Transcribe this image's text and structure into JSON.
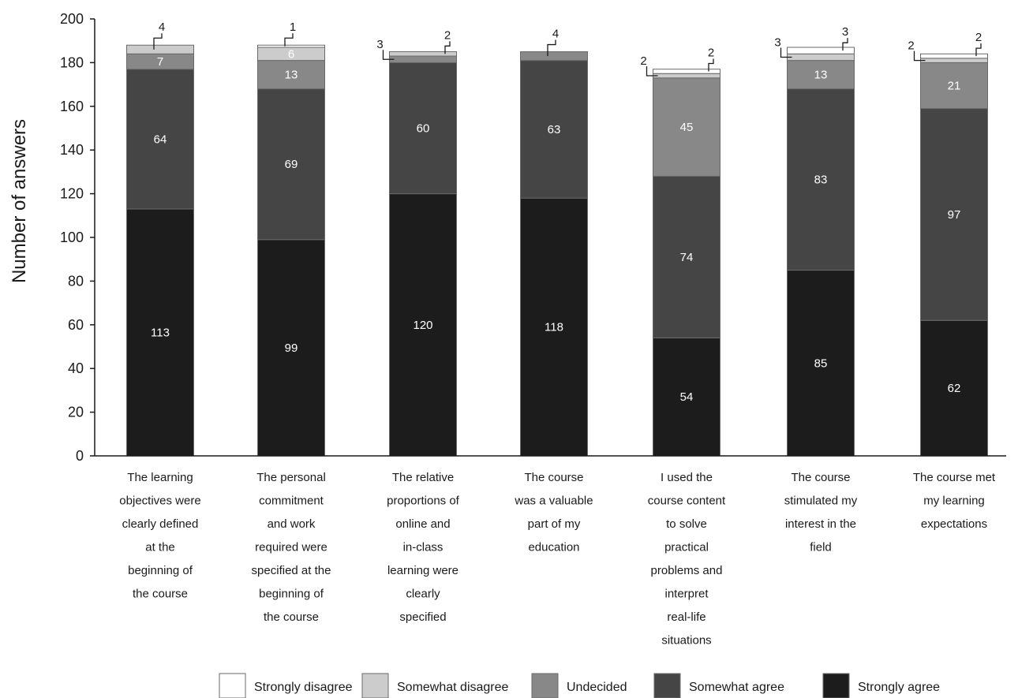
{
  "chart_data": {
    "type": "bar",
    "stacked": true,
    "title": "",
    "xlabel": "",
    "ylabel": "Number of answers",
    "ylim": [
      0,
      200
    ],
    "yticks": [
      0,
      20,
      40,
      60,
      80,
      100,
      120,
      140,
      160,
      180,
      200
    ],
    "grid": false,
    "legend_position": "bottom",
    "categories": [
      [
        "The learning",
        "objectives were",
        "clearly defined",
        "at the",
        "beginning of",
        "the course"
      ],
      [
        "The personal",
        "commitment",
        "and work",
        "required were",
        "specified at the",
        "beginning of",
        "the course"
      ],
      [
        "The relative",
        "proportions of",
        "online and",
        "in-class",
        "learning were",
        "clearly",
        "specified"
      ],
      [
        "The course",
        "was a valuable",
        "part of my",
        "education"
      ],
      [
        "I used the",
        "course content",
        "to solve",
        "practical",
        "problems and",
        "interpret",
        "real-life",
        "situations"
      ],
      [
        "The course",
        "stimulated my",
        "interest in the",
        "field"
      ],
      [
        "The course met",
        "my learning",
        "expectations"
      ]
    ],
    "series": [
      {
        "name": "Strongly agree",
        "color": "#1c1c1c",
        "label_color": "#ffffff",
        "values": [
          113,
          99,
          120,
          118,
          54,
          85,
          62
        ]
      },
      {
        "name": "Somewhat agree",
        "color": "#454545",
        "label_color": "#ffffff",
        "values": [
          64,
          69,
          60,
          63,
          74,
          83,
          97
        ]
      },
      {
        "name": "Undecided",
        "color": "#888888",
        "label_color": "#ffffff",
        "values": [
          7,
          13,
          3,
          4,
          45,
          13,
          21
        ]
      },
      {
        "name": "Somewhat disagree",
        "color": "#cccccc",
        "label_color": "#ffffff",
        "values": [
          4,
          6,
          2,
          0,
          2,
          3,
          2
        ]
      },
      {
        "name": "Strongly disagree",
        "color": "#ffffff",
        "label_color": "#1a1a1a",
        "values": [
          0,
          1,
          0,
          0,
          2,
          3,
          2
        ]
      }
    ]
  }
}
